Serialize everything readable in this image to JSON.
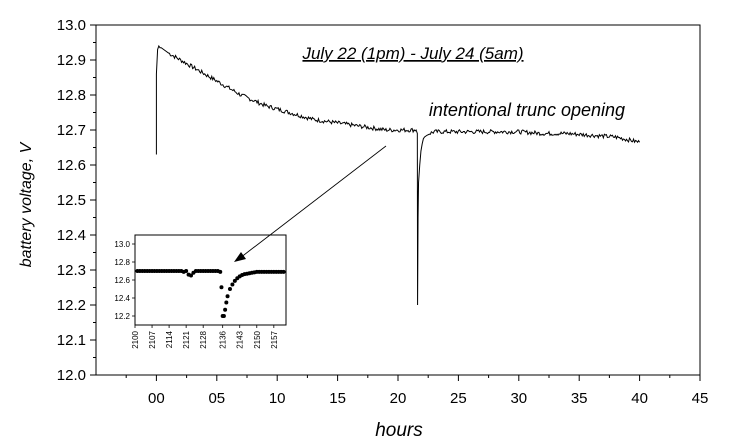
{
  "chart_data": [
    {
      "type": "line",
      "title": "July 22 (1pm) - July 24 (5am)",
      "xlabel": "hours",
      "ylabel": "battery voltage, V",
      "xlim": [
        -5,
        45
      ],
      "ylim": [
        12.0,
        13.0
      ],
      "x_ticks": [
        0,
        5,
        10,
        15,
        20,
        25,
        30,
        35,
        40,
        45
      ],
      "x_tick_labels": [
        "00",
        "05",
        "10",
        "15",
        "20",
        "25",
        "30",
        "35",
        "40",
        "45"
      ],
      "y_ticks": [
        12.0,
        12.1,
        12.2,
        12.3,
        12.4,
        12.5,
        12.6,
        12.7,
        12.8,
        12.9,
        13.0
      ],
      "y_tick_labels": [
        "12.0",
        "12.1",
        "12.2",
        "12.3",
        "12.4",
        "12.5",
        "12.6",
        "12.7",
        "12.8",
        "12.9",
        "13.0"
      ],
      "annotations": [
        {
          "text": "intentional trunc opening",
          "x": 21.7,
          "y": 12.69
        }
      ],
      "series": [
        {
          "x": [
            0.0,
            0.0,
            0.1,
            0.2,
            0.3,
            0.4,
            0.6,
            0.8,
            1,
            1.5,
            2,
            3,
            4,
            5,
            6,
            7,
            8,
            9,
            10,
            11,
            12,
            13,
            14,
            15,
            16,
            17,
            18,
            19,
            20,
            21,
            21.5,
            21.6,
            21.62,
            21.66,
            21.7,
            21.8,
            21.9,
            22.0,
            22.1,
            22.2,
            22.4,
            22.6,
            23,
            24,
            26,
            28,
            30,
            32,
            34,
            36,
            38,
            40
          ],
          "y": [
            12.63,
            12.86,
            12.93,
            12.94,
            12.935,
            12.935,
            12.93,
            12.925,
            12.92,
            12.91,
            12.9,
            12.88,
            12.86,
            12.84,
            12.82,
            12.8,
            12.785,
            12.77,
            12.76,
            12.75,
            12.74,
            12.73,
            12.725,
            12.72,
            12.715,
            12.71,
            12.705,
            12.7,
            12.7,
            12.7,
            12.7,
            12.69,
            12.2,
            12.45,
            12.55,
            12.6,
            12.64,
            12.66,
            12.675,
            12.68,
            12.685,
            12.69,
            12.695,
            12.695,
            12.695,
            12.695,
            12.695,
            12.69,
            12.69,
            12.685,
            12.68,
            12.665
          ]
        }
      ]
    },
    {
      "type": "scatter",
      "xlim": [
        2100,
        2162
      ],
      "ylim": [
        12.1,
        13.1
      ],
      "x_ticks": [
        2100,
        2107,
        2114,
        2121,
        2128,
        2136,
        2143,
        2150,
        2157
      ],
      "x_tick_labels": [
        "2100",
        "2107",
        "2114",
        "2121",
        "2128",
        "2136",
        "2143",
        "2150",
        "2157"
      ],
      "y_ticks": [
        12.2,
        12.4,
        12.6,
        12.8,
        13.0
      ],
      "y_tick_labels": [
        "12.2",
        "12.4",
        "12.6",
        "12.8",
        "13.0"
      ],
      "series": [
        {
          "x": [
            2101,
            2102,
            2103,
            2104,
            2105,
            2106,
            2107,
            2108,
            2109,
            2110,
            2111,
            2112,
            2113,
            2114,
            2115,
            2116,
            2117,
            2118,
            2119,
            2120,
            2121,
            2122,
            2123,
            2124,
            2125,
            2126,
            2127,
            2128,
            2129,
            2130,
            2131,
            2132,
            2133,
            2134,
            2135,
            2135.5,
            2136,
            2136.5,
            2137,
            2137.5,
            2138,
            2139,
            2140,
            2141,
            2142,
            2143,
            2144,
            2145,
            2146,
            2147,
            2148,
            2149,
            2150,
            2151,
            2152,
            2153,
            2154,
            2155,
            2156,
            2157,
            2158,
            2159,
            2160,
            2161
          ],
          "y": [
            12.7,
            12.7,
            12.7,
            12.7,
            12.7,
            12.7,
            12.7,
            12.7,
            12.7,
            12.7,
            12.7,
            12.7,
            12.7,
            12.7,
            12.7,
            12.7,
            12.7,
            12.7,
            12.7,
            12.69,
            12.7,
            12.66,
            12.65,
            12.68,
            12.7,
            12.7,
            12.7,
            12.7,
            12.7,
            12.7,
            12.7,
            12.7,
            12.7,
            12.7,
            12.69,
            12.52,
            12.2,
            12.2,
            12.27,
            12.35,
            12.42,
            12.5,
            12.55,
            12.59,
            12.62,
            12.64,
            12.655,
            12.665,
            12.67,
            12.675,
            12.68,
            12.685,
            12.69,
            12.69,
            12.69,
            12.69,
            12.69,
            12.69,
            12.69,
            12.69,
            12.69,
            12.69,
            12.69,
            12.69
          ]
        }
      ]
    }
  ]
}
